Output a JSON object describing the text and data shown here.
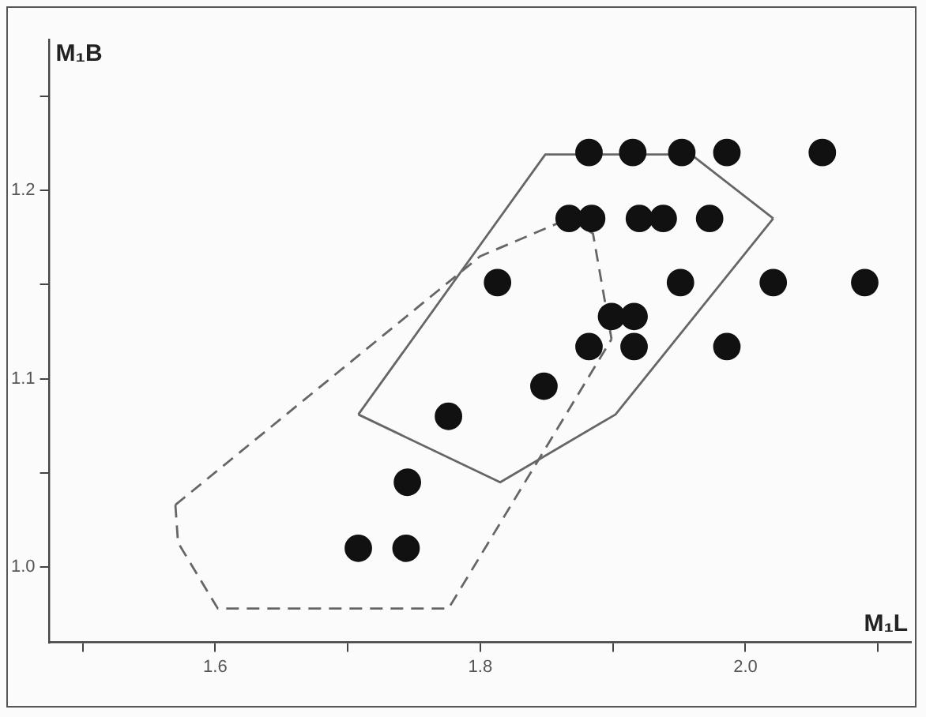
{
  "chart_data": {
    "type": "scatter",
    "xlabel": "M₁L",
    "ylabel": "M₁B",
    "xlim": [
      1.475,
      2.125
    ],
    "ylim": [
      0.96,
      1.28
    ],
    "xticks": [
      {
        "value": 1.5,
        "label": null
      },
      {
        "value": 1.6,
        "label": "1.6"
      },
      {
        "value": 1.7,
        "label": null
      },
      {
        "value": 1.8,
        "label": "1.8"
      },
      {
        "value": 1.9,
        "label": null
      },
      {
        "value": 2.0,
        "label": "2.0"
      },
      {
        "value": 2.1,
        "label": null
      }
    ],
    "yticks": [
      {
        "value": 1.0,
        "label": "1.0"
      },
      {
        "value": 1.05,
        "label": null
      },
      {
        "value": 1.1,
        "label": "1.1"
      },
      {
        "value": 1.15,
        "label": null
      },
      {
        "value": 1.2,
        "label": "1.2"
      },
      {
        "value": 1.25,
        "label": null
      }
    ],
    "grid": false,
    "legend": false,
    "series": [
      {
        "type": "scatter",
        "marker": "circle",
        "color": "#111111",
        "x": [
          1.708,
          1.744,
          1.745,
          1.776,
          1.848,
          1.882,
          1.916,
          1.986,
          1.899,
          1.916,
          1.813,
          1.951,
          2.021,
          2.09,
          1.867,
          1.884,
          1.92,
          1.938,
          1.973,
          1.882,
          1.915,
          1.952,
          1.986,
          2.058
        ],
        "values": [
          1.01,
          1.01,
          1.045,
          1.08,
          1.096,
          1.117,
          1.117,
          1.117,
          1.133,
          1.133,
          1.151,
          1.151,
          1.151,
          1.151,
          1.185,
          1.185,
          1.185,
          1.185,
          1.185,
          1.22,
          1.22,
          1.22,
          1.22,
          1.22
        ]
      },
      {
        "type": "line",
        "marker": "none",
        "line_style": "solid",
        "color": "#666666",
        "x": [
          1.708,
          1.849,
          1.959,
          2.021
        ],
        "values": [
          1.081,
          1.219,
          1.219,
          1.185
        ]
      },
      {
        "type": "line",
        "marker": "none",
        "line_style": "solid",
        "color": "#666666",
        "x": [
          1.708,
          1.815,
          1.902,
          2.021
        ],
        "values": [
          1.081,
          1.045,
          1.081,
          1.185
        ]
      },
      {
        "type": "line",
        "marker": "none",
        "line_style": "dashed",
        "color": "#666666",
        "x": [
          1.57,
          1.8,
          1.867,
          1.885,
          1.899
        ],
        "values": [
          1.033,
          1.165,
          1.185,
          1.177,
          1.121
        ]
      },
      {
        "type": "line",
        "marker": "none",
        "line_style": "dashed",
        "color": "#666666",
        "x": [
          1.57,
          1.572,
          1.602,
          1.776,
          1.899
        ],
        "values": [
          1.033,
          1.013,
          0.978,
          0.978,
          1.121
        ]
      }
    ]
  }
}
